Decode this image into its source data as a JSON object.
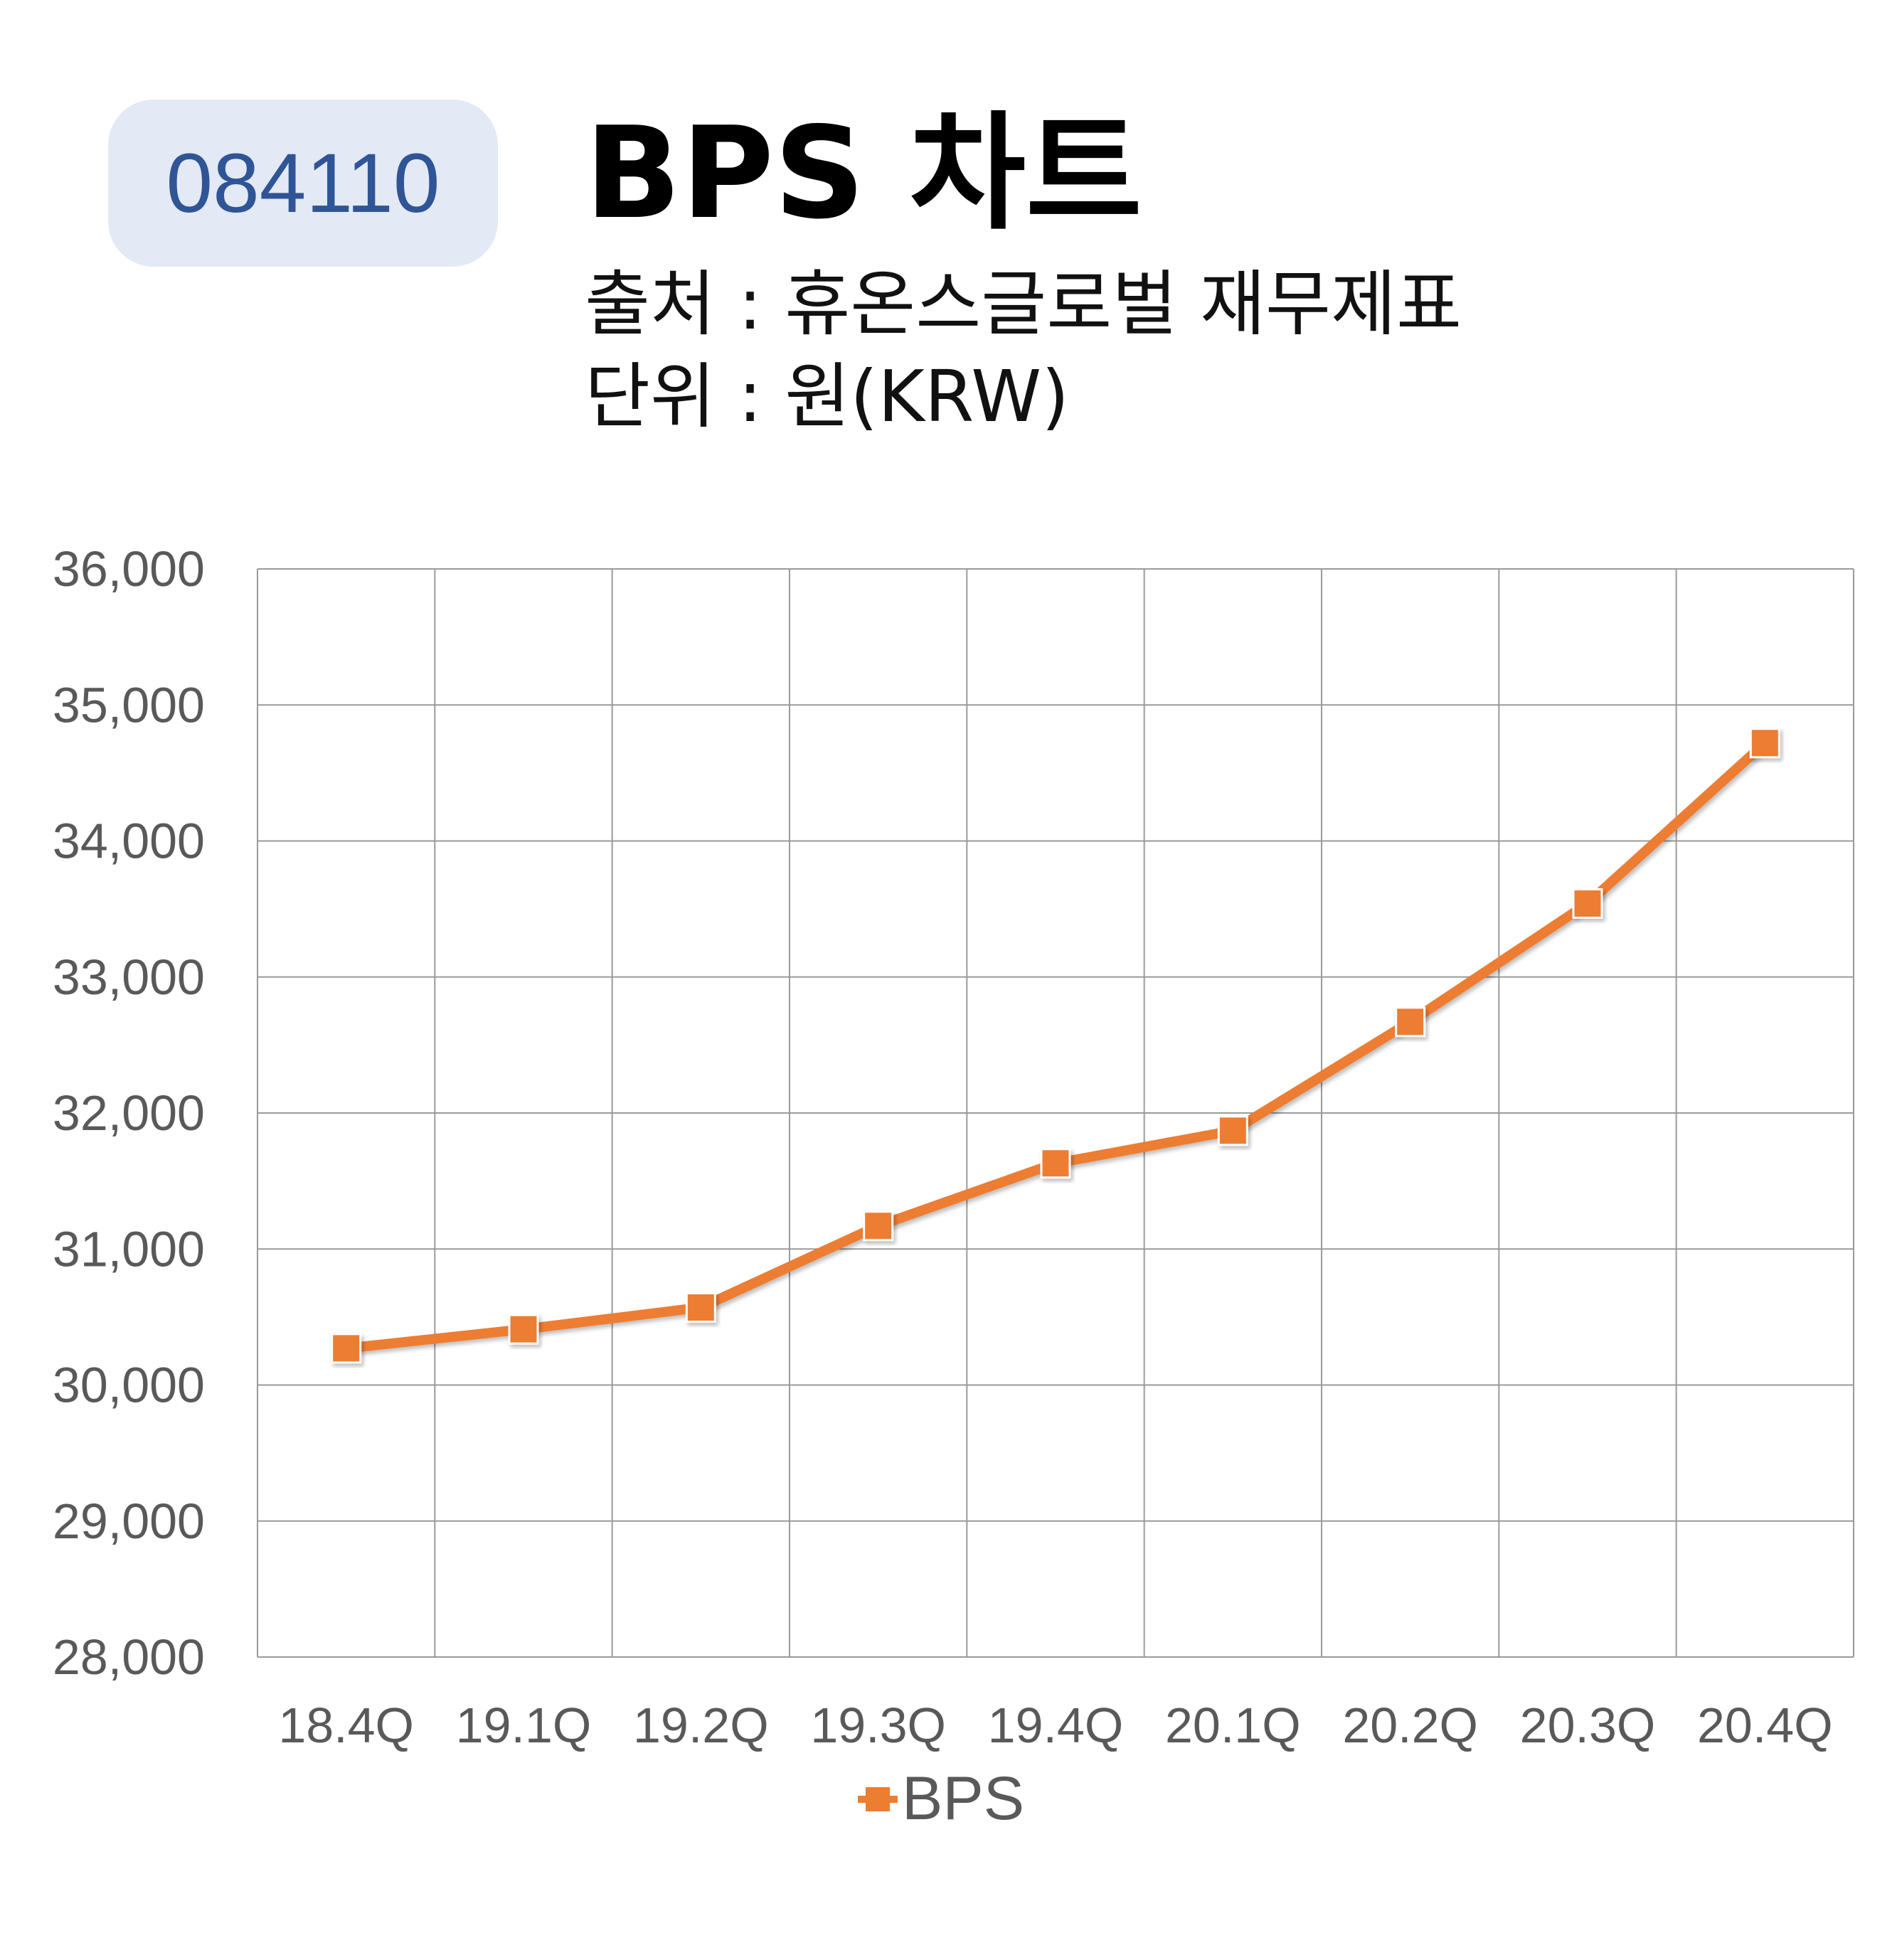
{
  "badge": {
    "code": "084110"
  },
  "header": {
    "title": "BPS 차트",
    "source": "출처 : 휴온스글로벌 재무제표",
    "unit": "단위 : 원(KRW)"
  },
  "colors": {
    "series": "#ed7d31",
    "grid": "#9a9a9a",
    "badge_bg": "#e3e9f5",
    "badge_text": "#2f5596",
    "tick_text": "#595959"
  },
  "chart_data": {
    "type": "line",
    "categories": [
      "18.4Q",
      "19.1Q",
      "19.2Q",
      "19.3Q",
      "19.4Q",
      "20.1Q",
      "20.2Q",
      "20.3Q",
      "20.4Q"
    ],
    "series": [
      {
        "name": "BPS",
        "values": [
          30270,
          30410,
          30570,
          31170,
          31630,
          31870,
          32670,
          33540,
          34720
        ]
      }
    ],
    "ylim": [
      28000,
      36000
    ],
    "yticks": [
      "28,000",
      "29,000",
      "30,000",
      "31,000",
      "32,000",
      "33,000",
      "34,000",
      "35,000",
      "36,000"
    ],
    "marker": "square",
    "grid": true,
    "legend": "bottom"
  }
}
